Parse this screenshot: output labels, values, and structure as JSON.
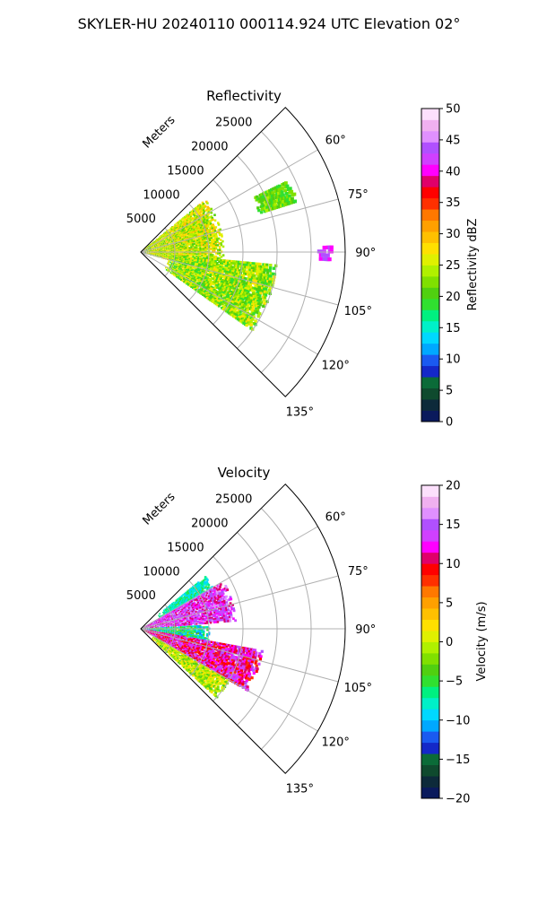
{
  "figure_title": "SKYLER-HU  20240110  000114.924 UTC Elevation 02°",
  "chart_data": [
    {
      "type": "heatmap",
      "title": "Reflectivity",
      "radial_label": "Meters",
      "r_ticks": [
        5000,
        10000,
        15000,
        20000,
        25000
      ],
      "r_tick_labels": [
        "5000",
        "10000",
        "15000",
        "20000",
        "25000"
      ],
      "r_lim": [
        0,
        30000
      ],
      "theta_ticks": [
        60,
        75,
        90,
        105,
        120,
        135
      ],
      "theta_tick_labels": [
        "60°",
        "75°",
        "90°",
        "105°",
        "120°",
        "135°"
      ],
      "theta_lim": [
        45,
        135
      ],
      "grid": true,
      "colorbar": {
        "label": "Reflectivity dBZ",
        "range": [
          0,
          50
        ],
        "ticks": [
          0,
          5,
          10,
          15,
          20,
          25,
          30,
          35,
          40,
          45,
          50
        ],
        "tick_labels": [
          "0",
          "5",
          "10",
          "15",
          "20",
          "25",
          "30",
          "35",
          "40",
          "45",
          "50"
        ],
        "colors": [
          "#0a1a5c",
          "#0d2a3a",
          "#0f4a2e",
          "#0b6b38",
          "#1428c8",
          "#1a5af0",
          "#00a8ff",
          "#00d8ff",
          "#00f0c8",
          "#00f080",
          "#30e030",
          "#50d010",
          "#80e000",
          "#b0f000",
          "#e0f000",
          "#ffe000",
          "#ffc000",
          "#ffa000",
          "#ff7800",
          "#ff3000",
          "#ff0000",
          "#e0006a",
          "#ff00ff",
          "#d040ff",
          "#b050ff",
          "#e090ff",
          "#f0b0f0",
          "#fce0fc"
        ]
      },
      "field_summary": [
        {
          "azimuth_range_deg": [
            50,
            105
          ],
          "range_m": [
            0,
            12000
          ],
          "dbz_typical": [
            20,
            30
          ]
        },
        {
          "azimuth_range_deg": [
            95,
            125
          ],
          "range_m": [
            4000,
            20000
          ],
          "dbz_typical": [
            18,
            28
          ]
        },
        {
          "azimuth_range_deg": [
            63,
            72
          ],
          "range_m": [
            18000,
            24000
          ],
          "dbz_typical": [
            18,
            24
          ]
        },
        {
          "azimuth_range_deg": [
            88,
            92
          ],
          "range_m": [
            26000,
            28000
          ],
          "dbz_typical": [
            40,
            45
          ]
        }
      ]
    },
    {
      "type": "heatmap",
      "title": "Velocity",
      "radial_label": "Meters",
      "r_ticks": [
        5000,
        10000,
        15000,
        20000,
        25000
      ],
      "r_tick_labels": [
        "5000",
        "10000",
        "15000",
        "20000",
        "25000"
      ],
      "r_lim": [
        0,
        30000
      ],
      "theta_ticks": [
        60,
        75,
        90,
        105,
        120,
        135
      ],
      "theta_tick_labels": [
        "60°",
        "75°",
        "90°",
        "105°",
        "120°",
        "135°"
      ],
      "theta_lim": [
        45,
        135
      ],
      "grid": true,
      "colorbar": {
        "label": "Velocity (m/s)",
        "range": [
          -20,
          20
        ],
        "ticks": [
          -20,
          -15,
          -10,
          -5,
          0,
          5,
          10,
          15,
          20
        ],
        "tick_labels": [
          "−20",
          "−15",
          "−10",
          "−5",
          "0",
          "5",
          "10",
          "15",
          "20"
        ],
        "colors": [
          "#0a1a5c",
          "#0d2a3a",
          "#0f4a2e",
          "#0b6b38",
          "#1428c8",
          "#1a5af0",
          "#00a8ff",
          "#00d8ff",
          "#00f0c8",
          "#00f080",
          "#30e030",
          "#50d010",
          "#80e000",
          "#b0f000",
          "#e0f000",
          "#ffe000",
          "#ffc000",
          "#ffa000",
          "#ff7800",
          "#ff3000",
          "#ff0000",
          "#e0006a",
          "#ff00ff",
          "#d040ff",
          "#b050ff",
          "#e090ff",
          "#f0b0f0",
          "#fce0fc"
        ]
      },
      "field_summary": [
        {
          "azimuth_range_deg": [
            50,
            60
          ],
          "range_m": [
            3000,
            12000
          ],
          "velocity_typical": [
            -10,
            -5
          ]
        },
        {
          "azimuth_range_deg": [
            60,
            85
          ],
          "range_m": [
            0,
            14000
          ],
          "velocity_typical": [
            10,
            17
          ]
        },
        {
          "azimuth_range_deg": [
            86,
            100
          ],
          "range_m": [
            0,
            10000
          ],
          "velocity_typical": [
            -12,
            -2
          ]
        },
        {
          "azimuth_range_deg": [
            100,
            120
          ],
          "range_m": [
            0,
            18000
          ],
          "velocity_typical": [
            8,
            15
          ]
        },
        {
          "azimuth_range_deg": [
            120,
            132
          ],
          "range_m": [
            2000,
            15000
          ],
          "velocity_typical": [
            -4,
            3
          ]
        }
      ]
    }
  ]
}
